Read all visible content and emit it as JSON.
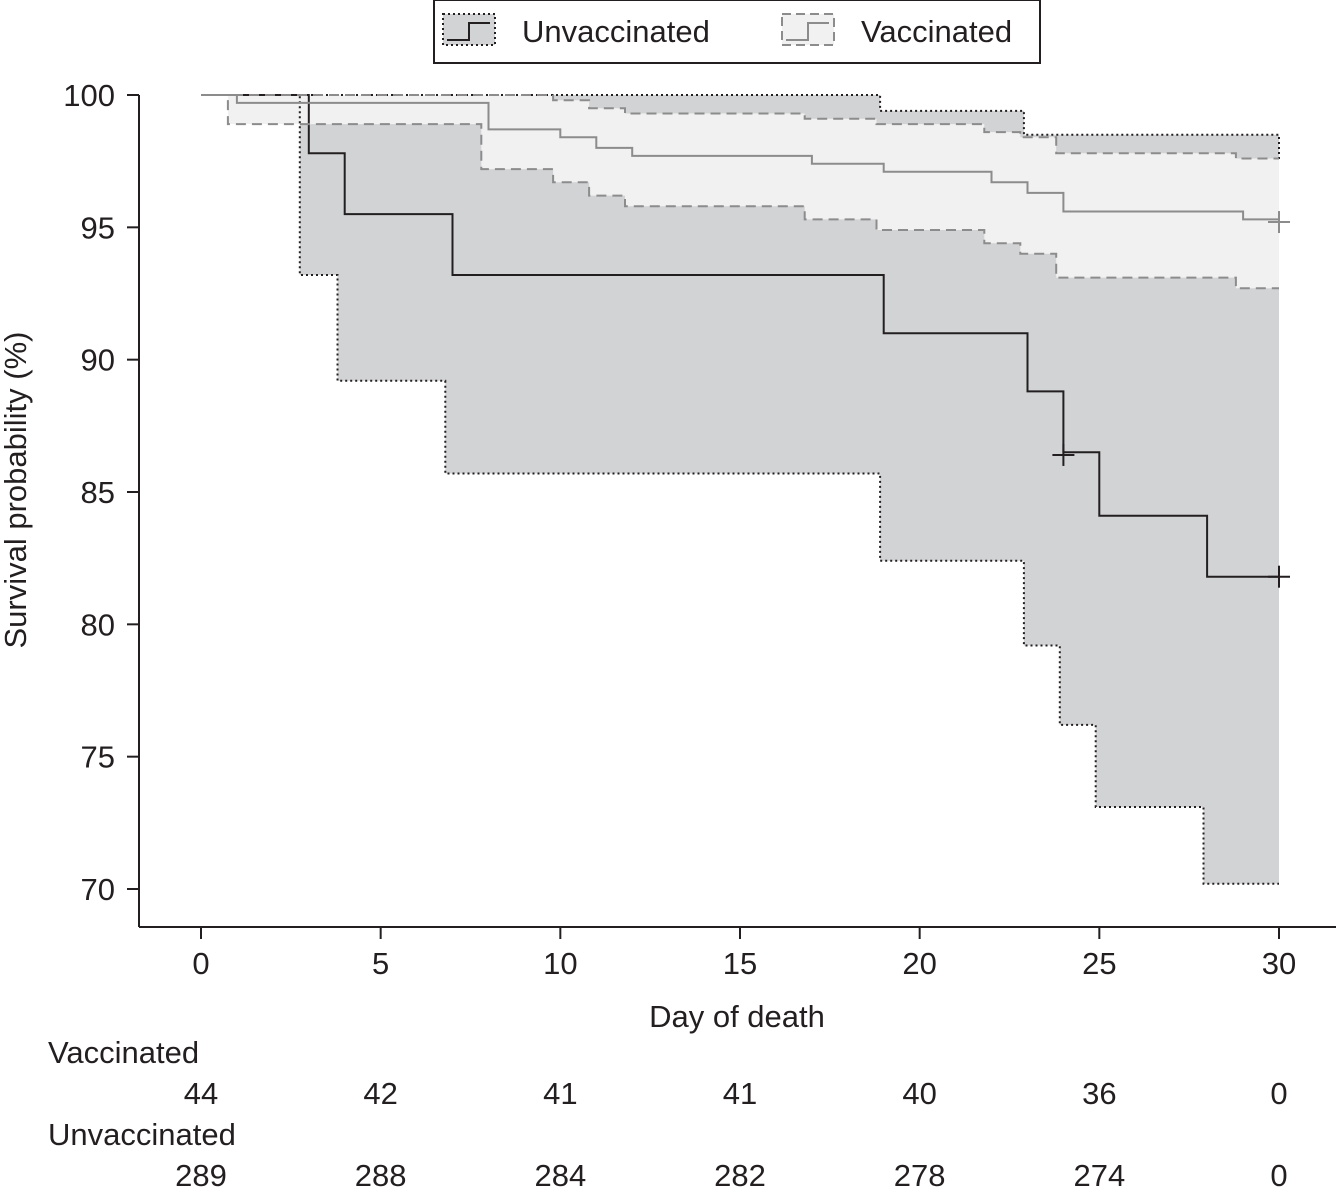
{
  "chart_data": {
    "type": "line",
    "title": "",
    "xlabel": "Day of death",
    "ylabel": "Survival probability (%)",
    "xlim": [
      0,
      30
    ],
    "ylim": [
      70,
      100
    ],
    "xticks": [
      "0",
      "5",
      "10",
      "15",
      "20",
      "25",
      "30"
    ],
    "yticks": [
      "70",
      "75",
      "80",
      "85",
      "90",
      "95",
      "100"
    ],
    "grid": false,
    "legend": {
      "placement": "top-center",
      "entries": [
        "Unvaccinated",
        "Vaccinated"
      ]
    },
    "series": [
      {
        "name": "Unvaccinated",
        "color": "#231f20",
        "band_color": "#d2d3d5",
        "survival": [
          [
            0,
            100
          ],
          [
            3,
            98.9
          ],
          [
            3,
            97.8
          ],
          [
            4,
            95.5
          ],
          [
            7,
            93.2
          ],
          [
            19,
            91.0
          ],
          [
            23,
            88.8
          ],
          [
            24,
            86.5
          ],
          [
            25,
            84.1
          ],
          [
            28,
            81.8
          ],
          [
            30,
            81.8
          ]
        ],
        "lower_ci": [
          [
            0,
            100
          ],
          [
            2.75,
            93.2
          ],
          [
            3.8,
            89.2
          ],
          [
            6.8,
            85.7
          ],
          [
            18.9,
            82.4
          ],
          [
            22.9,
            79.2
          ],
          [
            23.9,
            76.2
          ],
          [
            24.9,
            73.1
          ],
          [
            27.9,
            70.2
          ],
          [
            30,
            70.2
          ]
        ],
        "upper_ci": [
          [
            0,
            100
          ],
          [
            18.9,
            99.4
          ],
          [
            22.9,
            98.5
          ],
          [
            30,
            97.5
          ]
        ],
        "censored": [
          [
            24,
            86.4
          ],
          [
            30,
            81.8
          ]
        ]
      },
      {
        "name": "Vaccinated",
        "color": "#8c8c8c",
        "band_color": "#f1f1f1",
        "survival": [
          [
            0,
            100
          ],
          [
            1,
            99.7
          ],
          [
            8,
            98.7
          ],
          [
            10,
            98.4
          ],
          [
            11,
            98.0
          ],
          [
            12,
            97.7
          ],
          [
            17,
            97.4
          ],
          [
            19,
            97.1
          ],
          [
            22,
            96.7
          ],
          [
            23,
            96.3
          ],
          [
            24,
            95.6
          ],
          [
            29,
            95.3
          ],
          [
            30,
            95.3
          ]
        ],
        "lower_ci": [
          [
            0,
            100
          ],
          [
            0.75,
            98.9
          ],
          [
            7.8,
            97.2
          ],
          [
            9.8,
            96.7
          ],
          [
            10.8,
            96.2
          ],
          [
            11.8,
            95.8
          ],
          [
            16.8,
            95.3
          ],
          [
            18.8,
            94.9
          ],
          [
            21.8,
            94.4
          ],
          [
            22.8,
            94.0
          ],
          [
            23.8,
            93.1
          ],
          [
            28.8,
            92.7
          ],
          [
            30,
            92.7
          ]
        ],
        "upper_ci": [
          [
            0,
            100
          ],
          [
            9.8,
            99.8
          ],
          [
            10.8,
            99.5
          ],
          [
            11.8,
            99.3
          ],
          [
            16.8,
            99.1
          ],
          [
            18.8,
            98.9
          ],
          [
            21.8,
            98.6
          ],
          [
            22.8,
            98.4
          ],
          [
            23.8,
            97.8
          ],
          [
            28.8,
            97.6
          ],
          [
            30,
            97.6
          ]
        ],
        "censored": [
          [
            30,
            95.2
          ]
        ]
      }
    ],
    "risk_table": {
      "times": [
        "0",
        "5",
        "10",
        "15",
        "20",
        "25",
        "30"
      ],
      "groups": [
        {
          "name": "Vaccinated",
          "counts": [
            "44",
            "42",
            "41",
            "41",
            "40",
            "36",
            "0"
          ]
        },
        {
          "name": "Unvaccinated",
          "counts": [
            "289",
            "288",
            "284",
            "282",
            "278",
            "274",
            "0"
          ]
        }
      ]
    }
  }
}
